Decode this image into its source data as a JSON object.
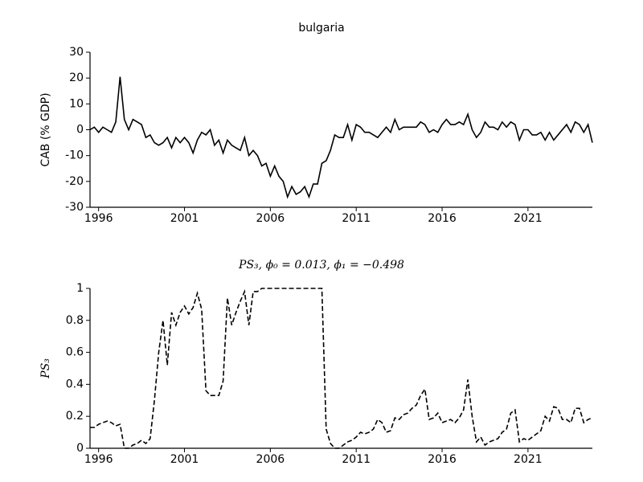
{
  "chart_data": [
    {
      "type": "line",
      "title": "bulgaria",
      "ylabel": "CAB (% GDP)",
      "linestyle": "solid",
      "x": [
        1995.5,
        1995.75,
        1996,
        1996.25,
        1996.5,
        1996.75,
        1997,
        1997.25,
        1997.5,
        1997.75,
        1998,
        1998.25,
        1998.5,
        1998.75,
        1999,
        1999.25,
        1999.5,
        1999.75,
        2000,
        2000.25,
        2000.5,
        2000.75,
        2001,
        2001.25,
        2001.5,
        2001.75,
        2002,
        2002.25,
        2002.5,
        2002.75,
        2003,
        2003.25,
        2003.5,
        2003.75,
        2004,
        2004.25,
        2004.5,
        2004.75,
        2005,
        2005.25,
        2005.5,
        2005.75,
        2006,
        2006.25,
        2006.5,
        2006.75,
        2007,
        2007.25,
        2007.5,
        2007.75,
        2008,
        2008.25,
        2008.5,
        2008.75,
        2009,
        2009.25,
        2009.5,
        2009.75,
        2010,
        2010.25,
        2010.5,
        2010.75,
        2011,
        2011.25,
        2011.5,
        2011.75,
        2012,
        2012.25,
        2012.5,
        2012.75,
        2013,
        2013.25,
        2013.5,
        2013.75,
        2014,
        2014.25,
        2014.5,
        2014.75,
        2015,
        2015.25,
        2015.5,
        2015.75,
        2016,
        2016.25,
        2016.5,
        2016.75,
        2017,
        2017.25,
        2017.5,
        2017.75,
        2018,
        2018.25,
        2018.5,
        2018.75,
        2019,
        2019.25,
        2019.5,
        2019.75,
        2020,
        2020.25,
        2020.5,
        2020.75,
        2021,
        2021.25,
        2021.5,
        2021.75,
        2022,
        2022.25,
        2022.5,
        2022.75,
        2023,
        2023.25,
        2023.5,
        2023.75,
        2024,
        2024.25,
        2024.5,
        2024.75
      ],
      "series": [
        {
          "color": "#000000",
          "values": [
            0,
            1,
            -1,
            1,
            0,
            -1,
            3,
            20.5,
            4,
            0,
            4,
            3,
            2,
            -3,
            -2,
            -5,
            -6,
            -5,
            -3,
            -7,
            -3,
            -5,
            -3,
            -5,
            -9,
            -4,
            -1,
            -2,
            0,
            -6,
            -4,
            -9,
            -4,
            -6,
            -7,
            -8,
            -3,
            -10,
            -8,
            -10,
            -14,
            -13,
            -18,
            -14,
            -18,
            -20,
            -26,
            -22,
            -25,
            -24,
            -22,
            -26,
            -21,
            -21,
            -13,
            -12,
            -8,
            -2,
            -3,
            -3,
            2,
            -4,
            2,
            1,
            -1,
            -1,
            -2,
            -3,
            -1,
            1,
            -1,
            4,
            0,
            1,
            1,
            1,
            1,
            3,
            2,
            -1,
            0,
            -1,
            2,
            4,
            2,
            2,
            3,
            2,
            6,
            0,
            -3,
            -1,
            3,
            1,
            1,
            0,
            3,
            1,
            3,
            2,
            -4,
            0,
            0,
            -2,
            -2,
            -1,
            -4,
            -1,
            -4,
            -2,
            0,
            2,
            -1,
            3,
            2,
            -1,
            2,
            -5
          ]
        }
      ],
      "xlim": [
        1995.5,
        2024.75
      ],
      "xticks": [
        1996,
        2001,
        2006,
        2011,
        2016,
        2021
      ],
      "ylim": [
        -30,
        30
      ],
      "yticks": [
        -30,
        -20,
        -10,
        0,
        10,
        20,
        30
      ]
    },
    {
      "type": "line",
      "title": "PS₃, ϕ₀ = 0.013, ϕ₁ = −0.498",
      "ylabel": "PS₃",
      "linestyle": "dashed",
      "x": [
        1995.5,
        1995.75,
        1996,
        1996.25,
        1996.5,
        1996.75,
        1997,
        1997.25,
        1997.5,
        1997.75,
        1998,
        1998.25,
        1998.5,
        1998.75,
        1999,
        1999.25,
        1999.5,
        1999.75,
        2000,
        2000.25,
        2000.5,
        2000.75,
        2001,
        2001.25,
        2001.5,
        2001.75,
        2002,
        2002.25,
        2002.5,
        2002.75,
        2003,
        2003.25,
        2003.5,
        2003.75,
        2004,
        2004.25,
        2004.5,
        2004.75,
        2005,
        2005.25,
        2005.5,
        2005.75,
        2006,
        2006.25,
        2006.5,
        2006.75,
        2007,
        2007.25,
        2007.5,
        2007.75,
        2008,
        2008.25,
        2008.5,
        2008.75,
        2009,
        2009.25,
        2009.5,
        2009.75,
        2010,
        2010.25,
        2010.5,
        2010.75,
        2011,
        2011.25,
        2011.5,
        2011.75,
        2012,
        2012.25,
        2012.5,
        2012.75,
        2013,
        2013.25,
        2013.5,
        2013.75,
        2014,
        2014.25,
        2014.5,
        2014.75,
        2015,
        2015.25,
        2015.5,
        2015.75,
        2016,
        2016.25,
        2016.5,
        2016.75,
        2017,
        2017.25,
        2017.5,
        2017.75,
        2018,
        2018.25,
        2018.5,
        2018.75,
        2019,
        2019.25,
        2019.5,
        2019.75,
        2020,
        2020.25,
        2020.5,
        2020.75,
        2021,
        2021.25,
        2021.5,
        2021.75,
        2022,
        2022.25,
        2022.5,
        2022.75,
        2023,
        2023.25,
        2023.5,
        2023.75,
        2024,
        2024.25,
        2024.5,
        2024.75
      ],
      "series": [
        {
          "color": "#000000",
          "values": [
            0.13,
            0.13,
            0.15,
            0.16,
            0.17,
            0.16,
            0.14,
            0.15,
            0,
            0,
            0.02,
            0.03,
            0.05,
            0.03,
            0.06,
            0.3,
            0.6,
            0.8,
            0.52,
            0.85,
            0.77,
            0.85,
            0.89,
            0.84,
            0.88,
            0.97,
            0.87,
            0.36,
            0.33,
            0.33,
            0.33,
            0.42,
            0.94,
            0.77,
            0.85,
            0.92,
            0.98,
            0.77,
            0.98,
            0.98,
            1,
            1,
            1,
            1,
            1,
            1,
            1,
            1,
            1,
            1,
            1,
            1,
            1,
            1,
            1,
            0.12,
            0.03,
            0,
            0,
            0.02,
            0.04,
            0.05,
            0.07,
            0.1,
            0.09,
            0.1,
            0.12,
            0.18,
            0.16,
            0.1,
            0.11,
            0.19,
            0.18,
            0.21,
            0.22,
            0.25,
            0.27,
            0.33,
            0.37,
            0.18,
            0.19,
            0.22,
            0.16,
            0.17,
            0.18,
            0.16,
            0.19,
            0.24,
            0.43,
            0.2,
            0.04,
            0.07,
            0.02,
            0.04,
            0.05,
            0.06,
            0.1,
            0.12,
            0.22,
            0.24,
            0.04,
            0.06,
            0.05,
            0.07,
            0.09,
            0.11,
            0.2,
            0.17,
            0.26,
            0.25,
            0.18,
            0.18,
            0.16,
            0.25,
            0.25,
            0.16,
            0.18,
            0.19
          ]
        }
      ],
      "xlim": [
        1995.5,
        2024.75
      ],
      "xticks": [
        1996,
        2001,
        2006,
        2011,
        2016,
        2021
      ],
      "ylim": [
        0,
        1
      ],
      "yticks": [
        0,
        0.2,
        0.4,
        0.6,
        0.8,
        1
      ]
    }
  ]
}
